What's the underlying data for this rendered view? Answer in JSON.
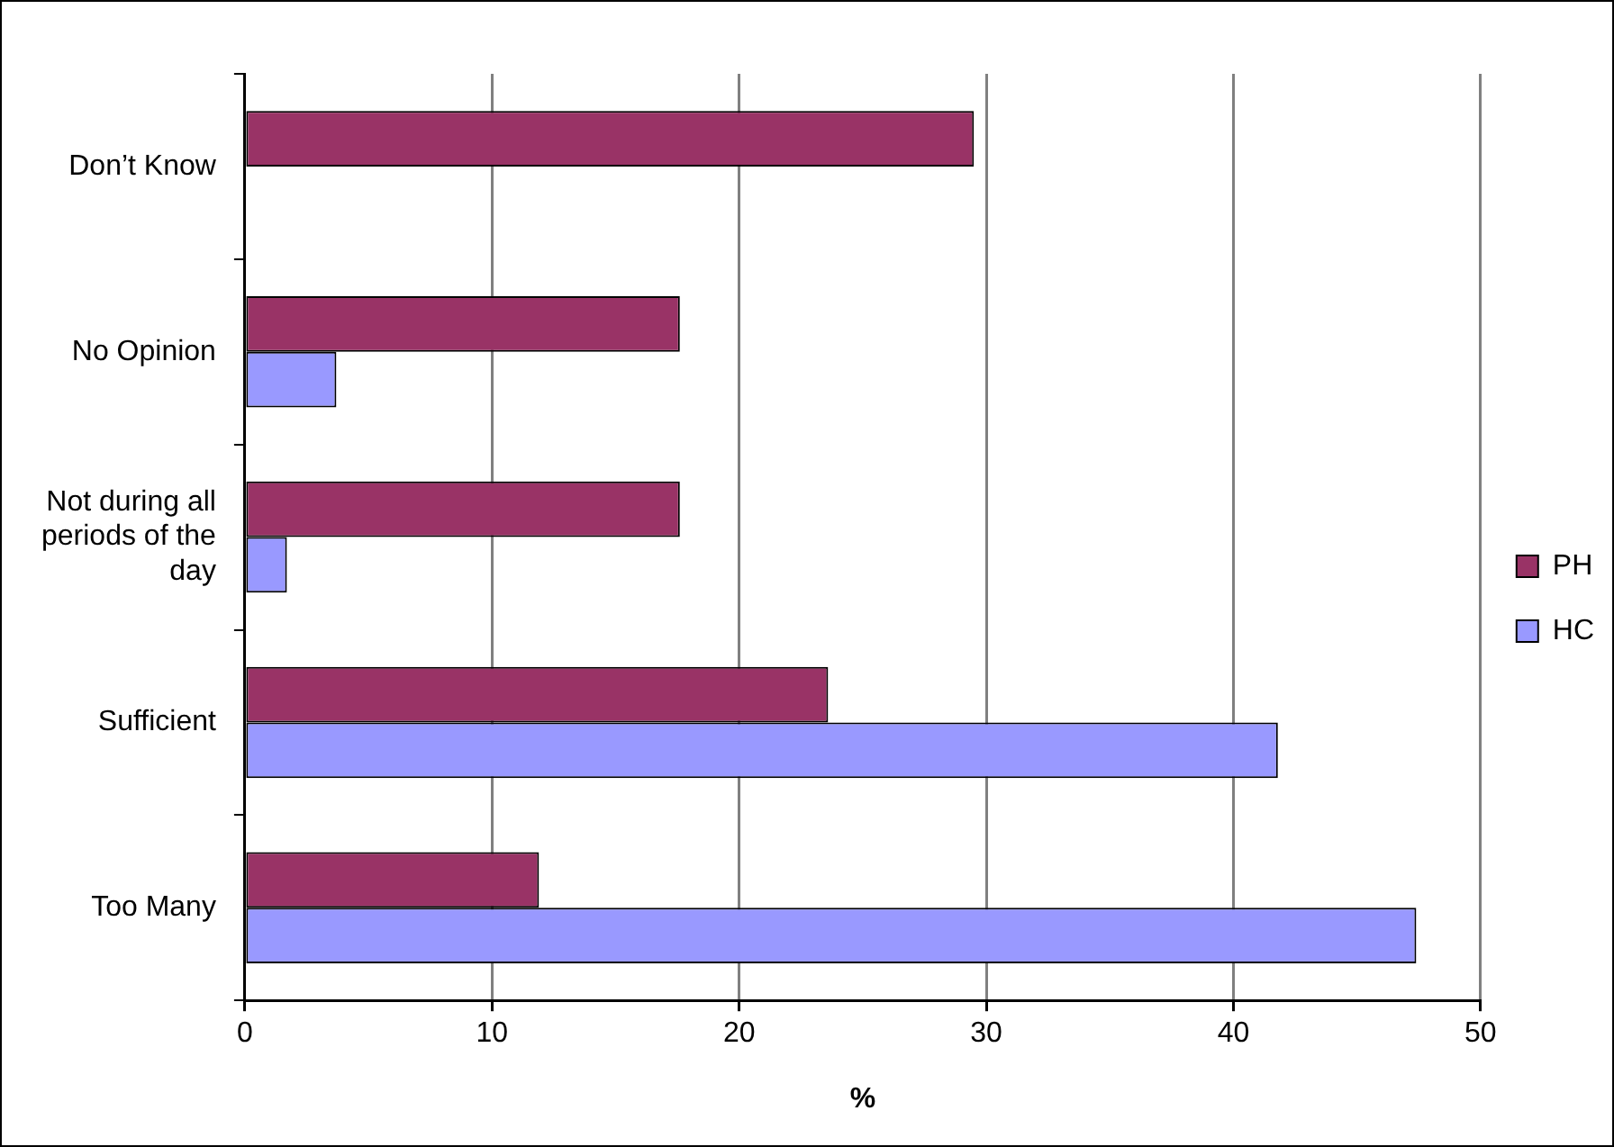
{
  "chart_data": {
    "type": "bar",
    "orientation": "horizontal",
    "xlabel": "%",
    "categories": [
      "Don’t Know",
      "No Opinion",
      "Not during all periods of the day",
      "Sufficient",
      "Too Many"
    ],
    "series": [
      {
        "name": "PH",
        "color": "#993366",
        "values": [
          29.5,
          17.6,
          17.6,
          23.6,
          11.9
        ]
      },
      {
        "name": "HC",
        "color": "#9999ff",
        "values": [
          null,
          3.7,
          1.7,
          41.8,
          47.4
        ]
      }
    ],
    "xlim": [
      0,
      50
    ],
    "xticks": [
      0,
      10,
      20,
      30,
      40,
      50
    ],
    "grid": "x",
    "legend": "right"
  }
}
